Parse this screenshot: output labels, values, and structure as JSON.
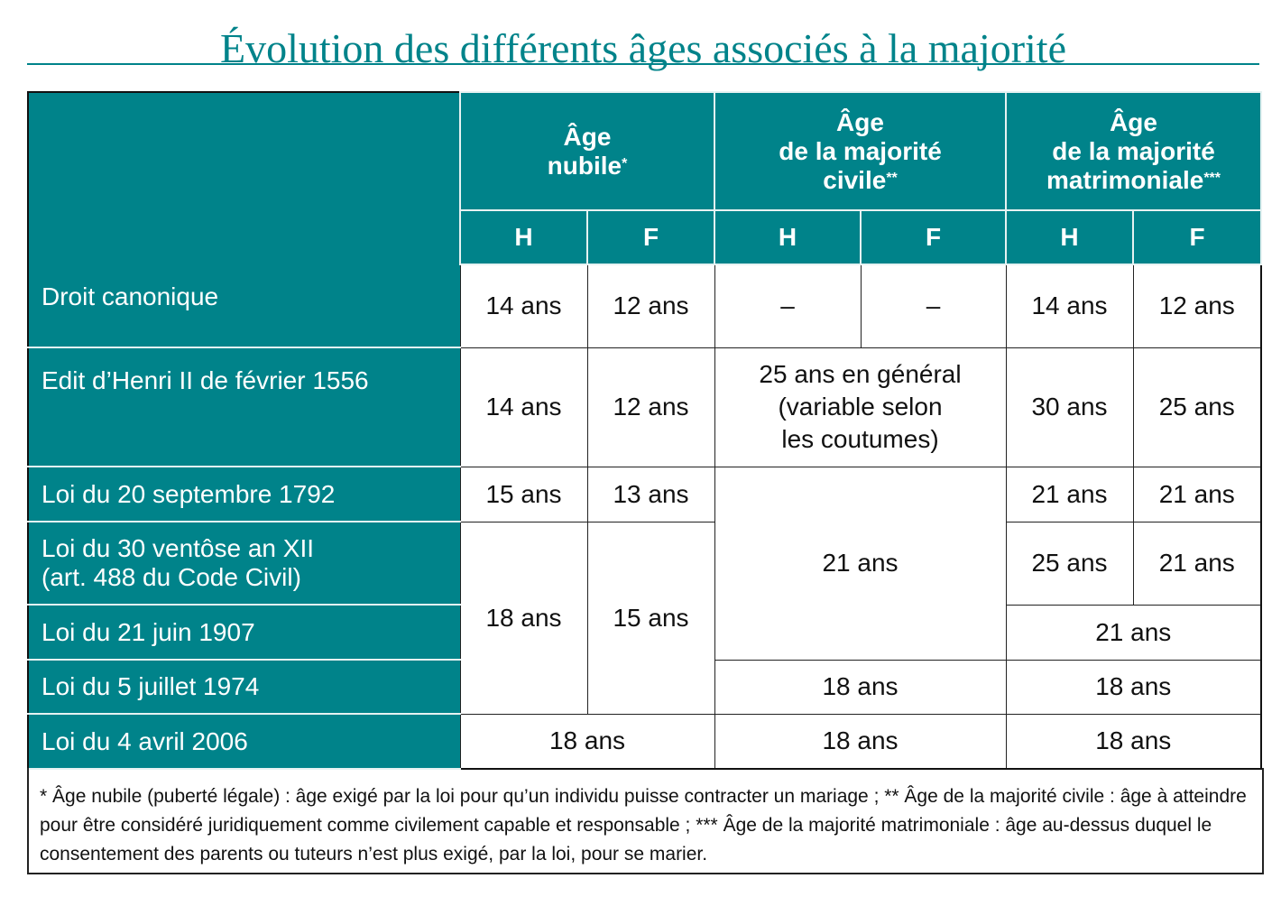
{
  "title": "Évolution des différents âges associés à la majorité",
  "colors": {
    "accent": "#00838a"
  },
  "headers": {
    "nubile": {
      "line1": "Âge",
      "line2": "nubile",
      "mark": "*"
    },
    "civile": {
      "line1": "Âge",
      "line2": "de la majorité",
      "line3": "civile",
      "mark": "**"
    },
    "matri": {
      "line1": "Âge",
      "line2": "de la majorité",
      "line3": "matrimoniale",
      "mark": "***"
    },
    "h": "H",
    "f": "F"
  },
  "rows": [
    {
      "label": "Droit canonique",
      "cells": [
        "14 ans",
        "12 ans",
        "–",
        "–",
        "14 ans",
        "12 ans"
      ]
    },
    {
      "label": "Edit d’Henri II de février 1556",
      "cells": [
        "14 ans",
        "12 ans",
        "25 ans en général",
        "(variable selon",
        "les coutumes)",
        "30 ans",
        "25 ans"
      ]
    },
    {
      "label": "Loi du 20 septembre 1792",
      "cells": [
        "15 ans",
        "13 ans",
        "21 ans",
        "21 ans",
        "21 ans"
      ]
    },
    {
      "label": "Loi du 30 ventôse an XII",
      "label2": "(art. 488 du Code Civil)",
      "cells": [
        "18 ans",
        "15 ans",
        "25 ans",
        "21 ans"
      ]
    },
    {
      "label": "Loi du 21 juin 1907",
      "cells": [
        "21 ans"
      ]
    },
    {
      "label": "Loi du 5 juillet 1974",
      "cells": [
        "18 ans",
        "18 ans"
      ]
    },
    {
      "label": "Loi du 4 avril 2006",
      "cells": [
        "18 ans",
        "18 ans",
        "18 ans"
      ]
    }
  ],
  "footnote": "* Âge nubile (puberté légale) : âge exigé par la loi pour qu’un individu puisse contracter un mariage ; ** Âge de la majorité civile : âge à atteindre pour être considéré juridiquement comme civilement capable et responsable ; *** Âge de la majorité matrimoniale : âge au-dessus duquel le consentement des parents ou tuteurs n’est plus exigé, par la loi, pour se marier."
}
